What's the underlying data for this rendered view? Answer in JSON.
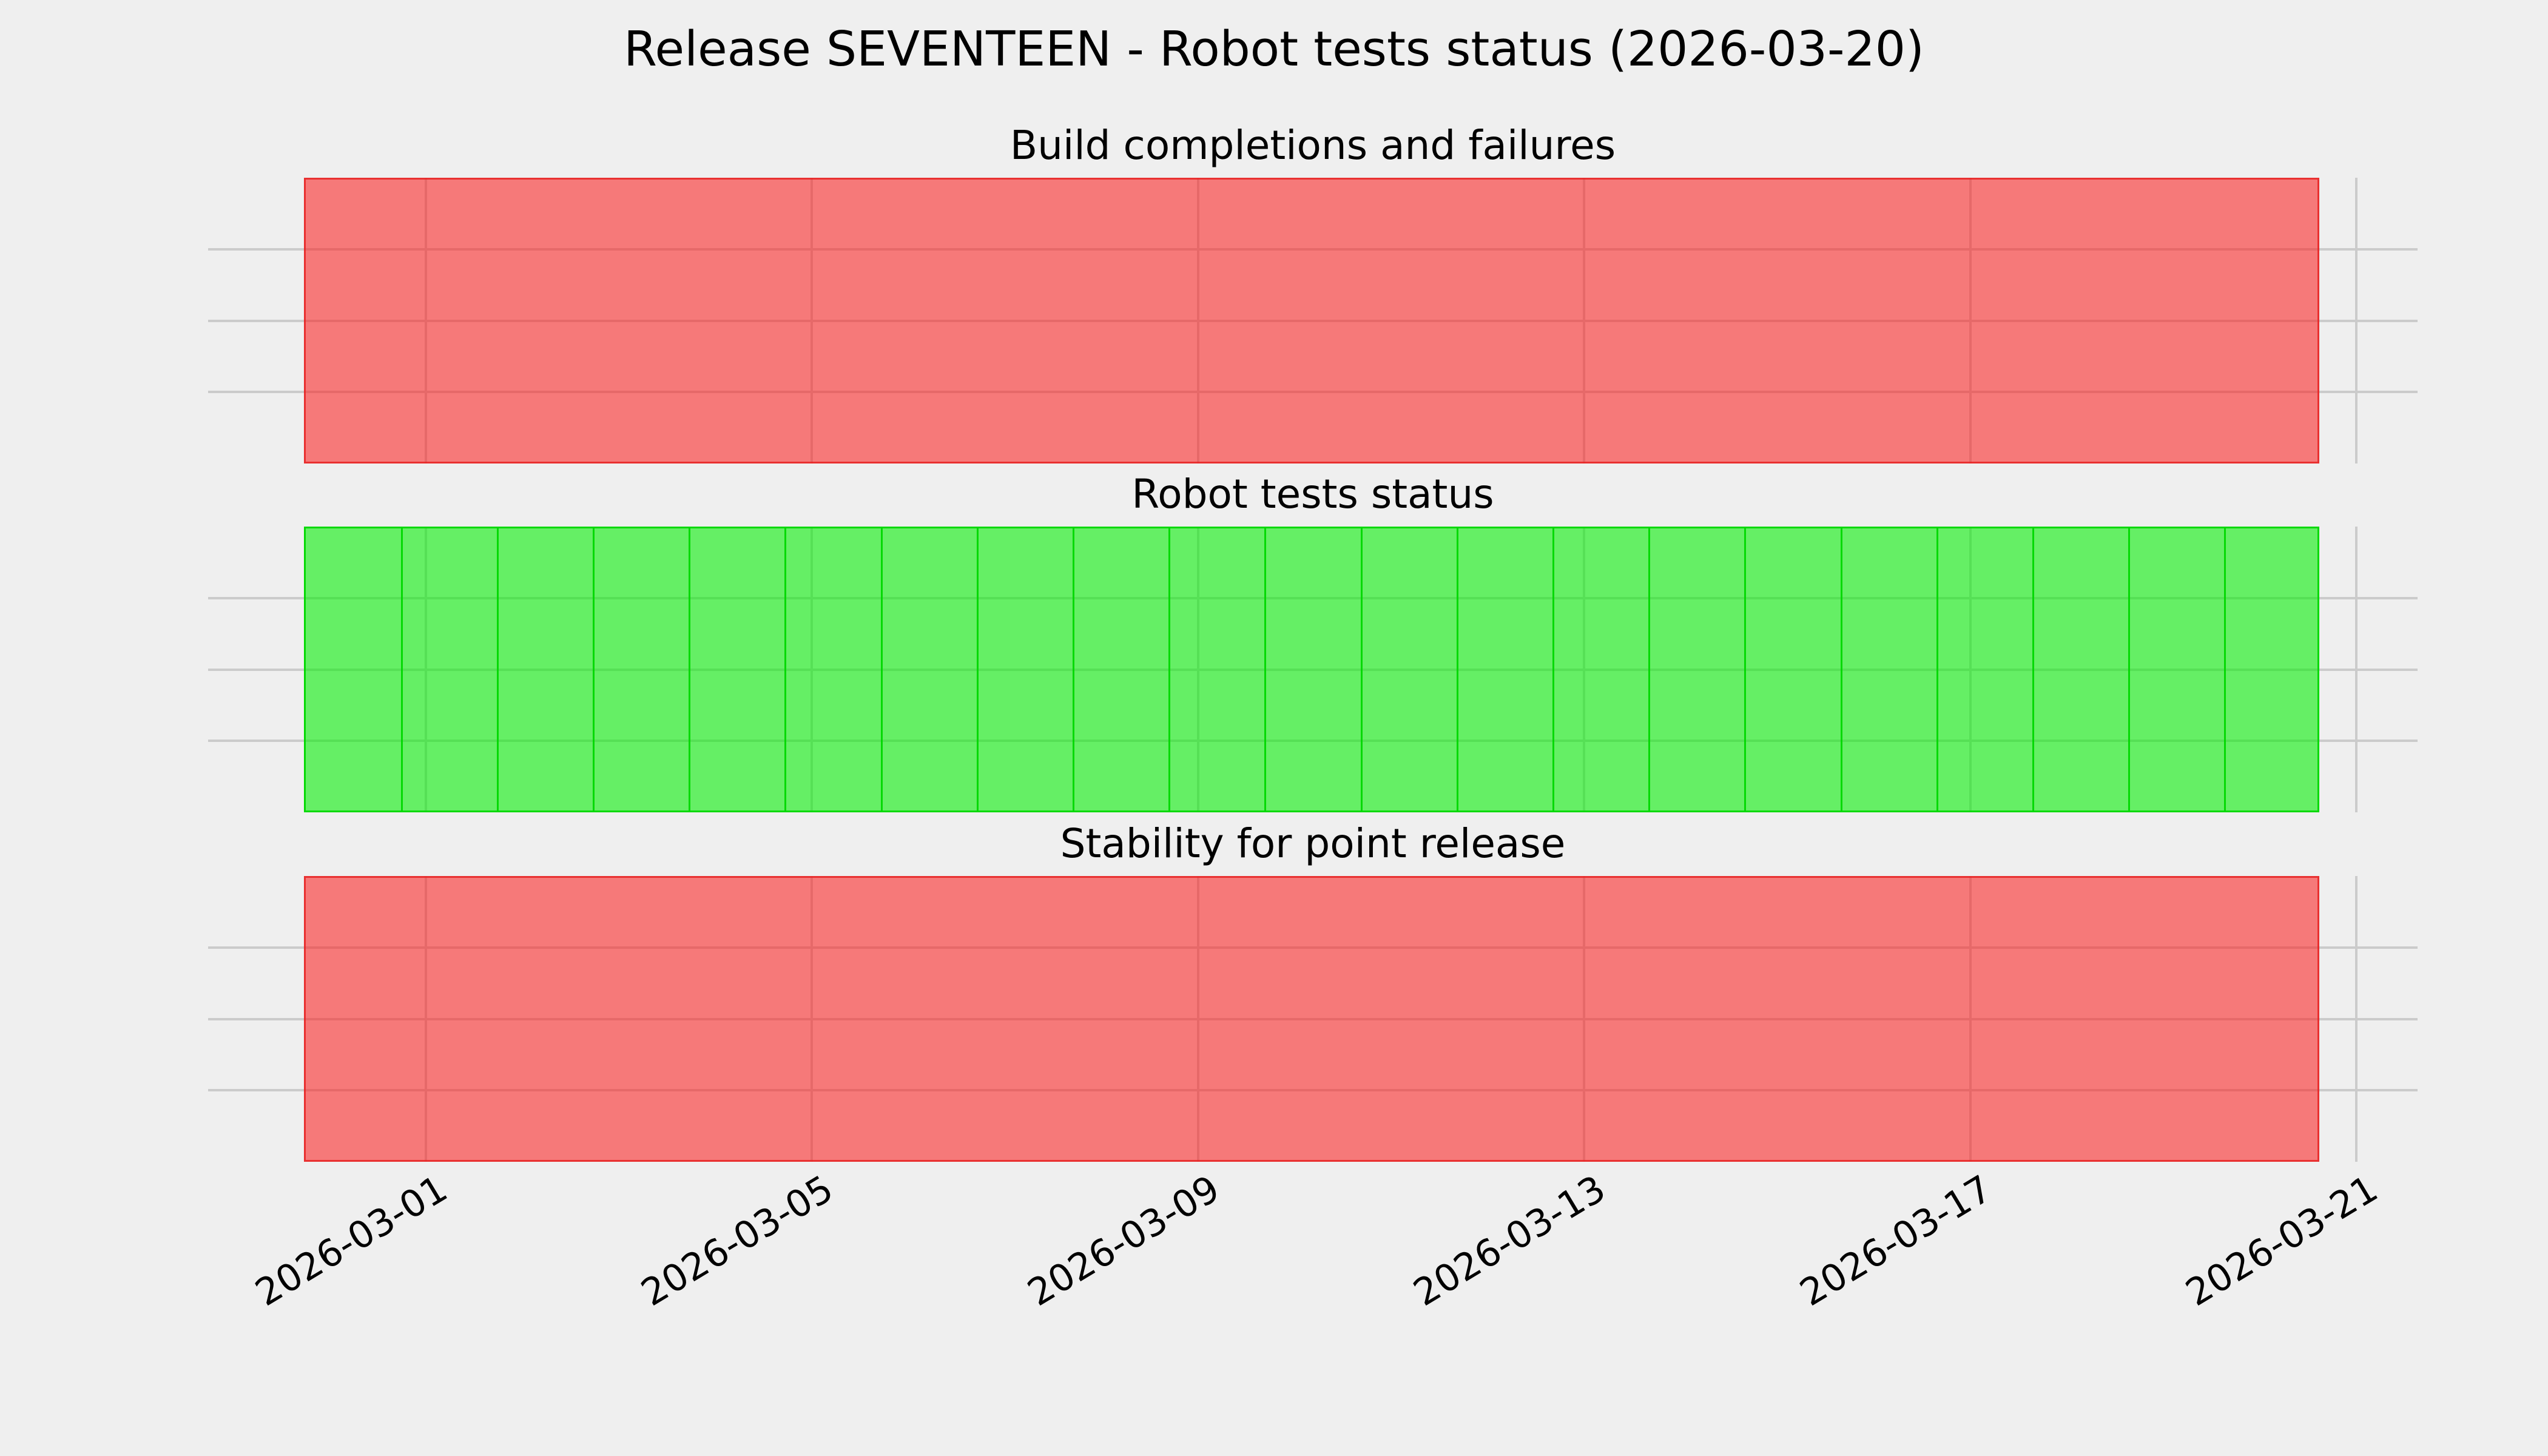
{
  "figure": {
    "suptitle": "Release SEVENTEEN - Robot tests status (2026-03-20)",
    "background_color": "#efefef",
    "grid_color": "#cbcbcb",
    "text_color": "#000000"
  },
  "chart_data": {
    "type": "status-timeline",
    "title": "Release SEVENTEEN - Robot tests status (2026-03-20)",
    "grid": true,
    "legend": null,
    "x_axis": {
      "start": "2026-02-28",
      "end": "2026-03-21",
      "tick_labels": [
        "2026-03-01",
        "2026-03-05",
        "2026-03-09",
        "2026-03-13",
        "2026-03-17",
        "2026-03-21"
      ],
      "tick_label_rotation_deg": 31,
      "days": [
        "2026-02-28",
        "2026-03-01",
        "2026-03-02",
        "2026-03-03",
        "2026-03-04",
        "2026-03-05",
        "2026-03-06",
        "2026-03-07",
        "2026-03-08",
        "2026-03-09",
        "2026-03-10",
        "2026-03-11",
        "2026-03-12",
        "2026-03-13",
        "2026-03-14",
        "2026-03-15",
        "2026-03-16",
        "2026-03-17",
        "2026-03-18",
        "2026-03-19",
        "2026-03-20"
      ]
    },
    "status_colors": {
      "fail_fill": "rgba(252, 28, 28, 0.56)",
      "fail_edge": "rgba(230, 35, 35, 0.85)",
      "fail_fill_hex_rendered": "#f76f6f",
      "pass_fill": "rgba(2, 240, 2, 0.58)",
      "pass_edge": "rgba(0, 215, 0, 0.95)",
      "pass_fill_hex_rendered": "#6cf56e"
    },
    "panels": [
      {
        "title": "Build completions and failures",
        "overall_status": "fail",
        "show_day_edges": false,
        "days_status": [
          "fail",
          "fail",
          "fail",
          "fail",
          "fail",
          "fail",
          "fail",
          "fail",
          "fail",
          "fail",
          "fail",
          "fail",
          "fail",
          "fail",
          "fail",
          "fail",
          "fail",
          "fail",
          "fail",
          "fail",
          "fail"
        ]
      },
      {
        "title": "Robot tests status",
        "overall_status": "pass",
        "show_day_edges": true,
        "days_status": [
          "pass",
          "pass",
          "pass",
          "pass",
          "pass",
          "pass",
          "pass",
          "pass",
          "pass",
          "pass",
          "pass",
          "pass",
          "pass",
          "pass",
          "pass",
          "pass",
          "pass",
          "pass",
          "pass",
          "pass",
          "pass"
        ]
      },
      {
        "title": "Stability for point release",
        "overall_status": "fail",
        "show_day_edges": false,
        "days_status": [
          "fail",
          "fail",
          "fail",
          "fail",
          "fail",
          "fail",
          "fail",
          "fail",
          "fail",
          "fail",
          "fail",
          "fail",
          "fail",
          "fail",
          "fail",
          "fail",
          "fail",
          "fail",
          "fail",
          "fail",
          "fail"
        ]
      }
    ]
  }
}
